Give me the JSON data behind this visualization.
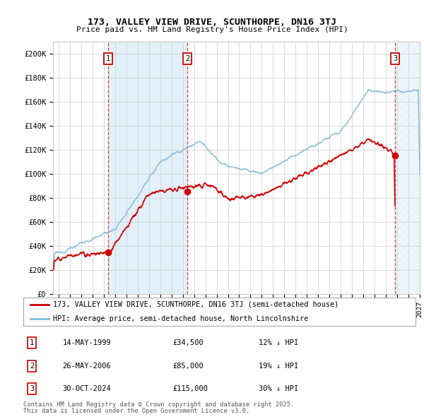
{
  "title_line1": "173, VALLEY VIEW DRIVE, SCUNTHORPE, DN16 3TJ",
  "title_line2": "Price paid vs. HM Land Registry's House Price Index (HPI)",
  "ylim": [
    0,
    210000
  ],
  "yticks": [
    0,
    20000,
    40000,
    60000,
    80000,
    100000,
    120000,
    140000,
    160000,
    180000,
    200000
  ],
  "ytick_labels": [
    "£0",
    "£20K",
    "£40K",
    "£60K",
    "£80K",
    "£100K",
    "£120K",
    "£140K",
    "£160K",
    "£180K",
    "£200K"
  ],
  "hpi_color": "#7db8d8",
  "price_color": "#cc0000",
  "background_color": "#ffffff",
  "grid_color": "#cccccc",
  "legend_label_red": "173, VALLEY VIEW DRIVE, SCUNTHORPE, DN16 3TJ (semi-detached house)",
  "legend_label_blue": "HPI: Average price, semi-detached house, North Lincolnshire",
  "transactions": [
    {
      "label": "1",
      "date": "14-MAY-1999",
      "price": 34500,
      "pct": "12%",
      "direction": "↓",
      "year": 1999.37
    },
    {
      "label": "2",
      "date": "26-MAY-2006",
      "price": 85000,
      "pct": "19%",
      "direction": "↓",
      "year": 2006.4
    },
    {
      "label": "3",
      "date": "30-OCT-2024",
      "price": 115000,
      "pct": "30%",
      "direction": "↓",
      "year": 2024.83
    }
  ],
  "footnote1": "Contains HM Land Registry data © Crown copyright and database right 2025.",
  "footnote2": "This data is licensed under the Open Government Licence v3.0.",
  "shade_start": 1999.37,
  "shade_end": 2006.4,
  "future_shade_start": 2024.83,
  "future_shade_end": 2027.0,
  "xlim_start": 1994.5,
  "xlim_end": 2027.0
}
